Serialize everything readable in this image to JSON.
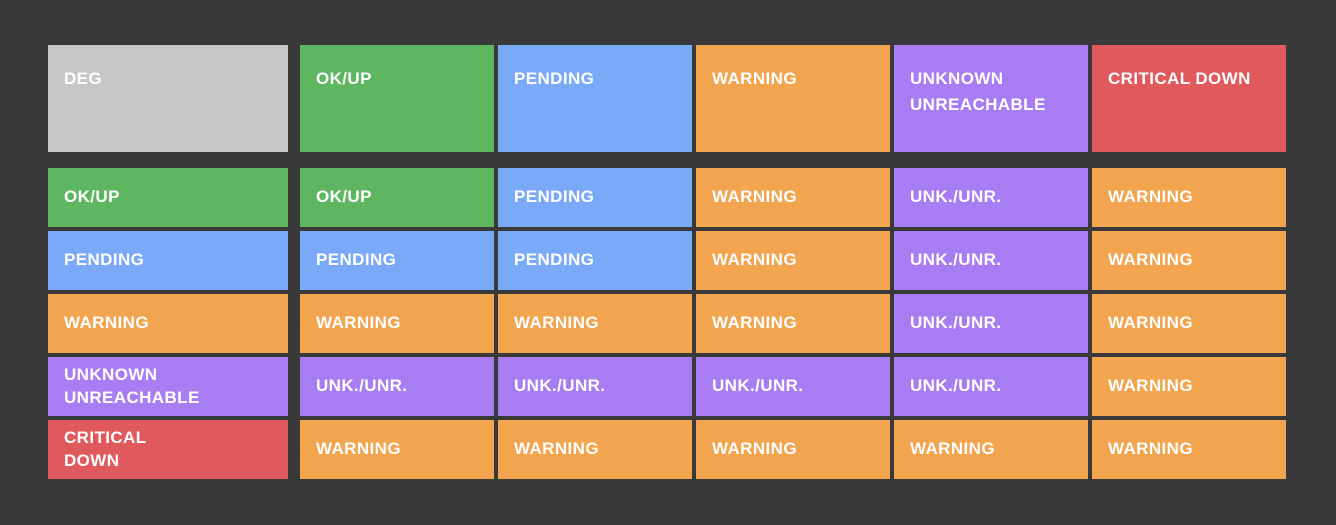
{
  "colors": {
    "background": "#393939",
    "text": "#ffffff",
    "states": {
      "deg": "#c6c6c6",
      "ok": "#5eb661",
      "pending": "#7aa9f8",
      "warning": "#f2a44f",
      "unknown": "#a87cf3",
      "critical": "#e05a5d"
    }
  },
  "matrix": {
    "corner": {
      "lines": [
        "DEG"
      ],
      "state": "deg"
    },
    "col_headers": [
      {
        "lines": [
          "OK/UP"
        ],
        "state": "ok"
      },
      {
        "lines": [
          "PENDING"
        ],
        "state": "pending"
      },
      {
        "lines": [
          "WARNING"
        ],
        "state": "warning"
      },
      {
        "lines": [
          "UNKNOWN",
          "UNREACHABLE"
        ],
        "state": "unknown"
      },
      {
        "lines": [
          "CRITICAL DOWN"
        ],
        "state": "critical"
      }
    ],
    "rows": [
      {
        "header": {
          "lines": [
            "OK/UP"
          ],
          "state": "ok"
        },
        "cells": [
          {
            "lines": [
              "OK/UP"
            ],
            "state": "ok"
          },
          {
            "lines": [
              "PENDING"
            ],
            "state": "pending"
          },
          {
            "lines": [
              "WARNING"
            ],
            "state": "warning"
          },
          {
            "lines": [
              "UNK./UNR."
            ],
            "state": "unknown"
          },
          {
            "lines": [
              "WARNING"
            ],
            "state": "warning"
          }
        ]
      },
      {
        "header": {
          "lines": [
            "PENDING"
          ],
          "state": "pending"
        },
        "cells": [
          {
            "lines": [
              "PENDING"
            ],
            "state": "pending"
          },
          {
            "lines": [
              "PENDING"
            ],
            "state": "pending"
          },
          {
            "lines": [
              "WARNING"
            ],
            "state": "warning"
          },
          {
            "lines": [
              "UNK./UNR."
            ],
            "state": "unknown"
          },
          {
            "lines": [
              "WARNING"
            ],
            "state": "warning"
          }
        ]
      },
      {
        "header": {
          "lines": [
            "WARNING"
          ],
          "state": "warning"
        },
        "cells": [
          {
            "lines": [
              "WARNING"
            ],
            "state": "warning"
          },
          {
            "lines": [
              "WARNING"
            ],
            "state": "warning"
          },
          {
            "lines": [
              "WARNING"
            ],
            "state": "warning"
          },
          {
            "lines": [
              "UNK./UNR."
            ],
            "state": "unknown"
          },
          {
            "lines": [
              "WARNING"
            ],
            "state": "warning"
          }
        ]
      },
      {
        "header": {
          "lines": [
            "UNKNOWN",
            "UNREACHABLE"
          ],
          "state": "unknown"
        },
        "cells": [
          {
            "lines": [
              "UNK./UNR."
            ],
            "state": "unknown"
          },
          {
            "lines": [
              "UNK./UNR."
            ],
            "state": "unknown"
          },
          {
            "lines": [
              "UNK./UNR."
            ],
            "state": "unknown"
          },
          {
            "lines": [
              "UNK./UNR."
            ],
            "state": "unknown"
          },
          {
            "lines": [
              "WARNING"
            ],
            "state": "warning"
          }
        ]
      },
      {
        "header": {
          "lines": [
            "CRITICAL",
            "DOWN"
          ],
          "state": "critical"
        },
        "cells": [
          {
            "lines": [
              "WARNING"
            ],
            "state": "warning"
          },
          {
            "lines": [
              "WARNING"
            ],
            "state": "warning"
          },
          {
            "lines": [
              "WARNING"
            ],
            "state": "warning"
          },
          {
            "lines": [
              "WARNING"
            ],
            "state": "warning"
          },
          {
            "lines": [
              "WARNING"
            ],
            "state": "warning"
          }
        ]
      }
    ]
  }
}
